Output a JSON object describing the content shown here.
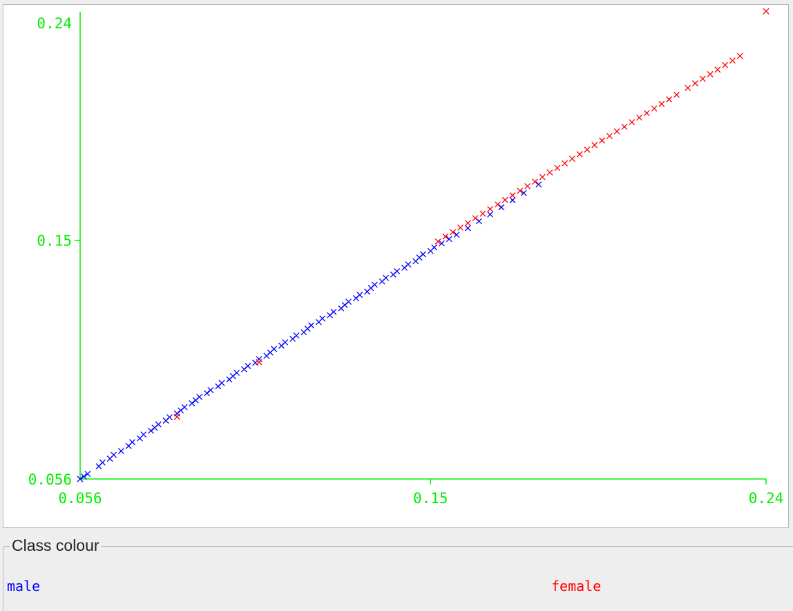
{
  "chart_data": {
    "type": "scatter",
    "marker": "x",
    "x_ticks": [
      "0.056",
      "0.15",
      "0.24"
    ],
    "y_ticks": [
      "0.24",
      "0.15",
      "0.056"
    ],
    "xlim": [
      0.056,
      0.24
    ],
    "ylim": [
      0.056,
      0.24
    ],
    "axis_color": "#00ee00",
    "series": [
      {
        "name": "male",
        "color": "#0000ff",
        "x": [
          0.056,
          0.057,
          0.058,
          0.061,
          0.062,
          0.064,
          0.065,
          0.067,
          0.069,
          0.07,
          0.072,
          0.073,
          0.075,
          0.076,
          0.077,
          0.079,
          0.08,
          0.082,
          0.083,
          0.084,
          0.086,
          0.087,
          0.088,
          0.09,
          0.091,
          0.093,
          0.094,
          0.096,
          0.097,
          0.098,
          0.1,
          0.101,
          0.103,
          0.104,
          0.106,
          0.107,
          0.108,
          0.11,
          0.111,
          0.113,
          0.114,
          0.116,
          0.117,
          0.118,
          0.12,
          0.121,
          0.123,
          0.124,
          0.126,
          0.127,
          0.128,
          0.13,
          0.131,
          0.133,
          0.134,
          0.135,
          0.137,
          0.138,
          0.14,
          0.141,
          0.143,
          0.144,
          0.146,
          0.147,
          0.148,
          0.15,
          0.151,
          0.153,
          0.155,
          0.157,
          0.16,
          0.163,
          0.166,
          0.169,
          0.172,
          0.175,
          0.179
        ],
        "y": [
          0.056,
          0.057,
          0.058,
          0.061,
          0.0625,
          0.064,
          0.0655,
          0.067,
          0.069,
          0.0705,
          0.072,
          0.0735,
          0.075,
          0.0762,
          0.0775,
          0.079,
          0.0803,
          0.0818,
          0.083,
          0.0843,
          0.0858,
          0.087,
          0.0883,
          0.0898,
          0.091,
          0.0925,
          0.0938,
          0.0952,
          0.0965,
          0.0978,
          0.0992,
          0.1005,
          0.1018,
          0.1032,
          0.1045,
          0.1058,
          0.1072,
          0.1085,
          0.1098,
          0.1112,
          0.1125,
          0.1138,
          0.1152,
          0.1165,
          0.1178,
          0.1192,
          0.1205,
          0.1218,
          0.1232,
          0.1245,
          0.1258,
          0.1272,
          0.1285,
          0.1298,
          0.1312,
          0.1325,
          0.1338,
          0.1352,
          0.1365,
          0.1378,
          0.1392,
          0.1405,
          0.1418,
          0.1432,
          0.1445,
          0.1458,
          0.1472,
          0.1488,
          0.1505,
          0.1522,
          0.1548,
          0.1575,
          0.1602,
          0.163,
          0.1658,
          0.1686,
          0.172
        ]
      },
      {
        "name": "female",
        "color": "#ff0000",
        "x": [
          0.082,
          0.104,
          0.152,
          0.154,
          0.156,
          0.158,
          0.16,
          0.162,
          0.164,
          0.166,
          0.168,
          0.17,
          0.172,
          0.174,
          0.176,
          0.178,
          0.18,
          0.182,
          0.184,
          0.186,
          0.188,
          0.19,
          0.192,
          0.194,
          0.196,
          0.198,
          0.2,
          0.202,
          0.204,
          0.206,
          0.208,
          0.21,
          0.212,
          0.214,
          0.216,
          0.219,
          0.221,
          0.223,
          0.225,
          0.227,
          0.229,
          0.231,
          0.233,
          0.24
        ],
        "y": [
          0.0805,
          0.102,
          0.1495,
          0.1515,
          0.1532,
          0.155,
          0.1568,
          0.1587,
          0.1605,
          0.1623,
          0.1641,
          0.1659,
          0.1677,
          0.1695,
          0.1713,
          0.1731,
          0.1749,
          0.1767,
          0.1785,
          0.1803,
          0.1821,
          0.1839,
          0.1857,
          0.1875,
          0.1893,
          0.1911,
          0.1929,
          0.1947,
          0.1965,
          0.1983,
          0.2001,
          0.2019,
          0.2037,
          0.2055,
          0.2073,
          0.21,
          0.2118,
          0.2136,
          0.2154,
          0.2172,
          0.219,
          0.2208,
          0.2226,
          0.2402
        ]
      }
    ]
  },
  "legend": {
    "title": "Class colour",
    "entries": [
      {
        "label": "male",
        "color": "#0000ff"
      },
      {
        "label": "female",
        "color": "#ff0000"
      }
    ]
  }
}
